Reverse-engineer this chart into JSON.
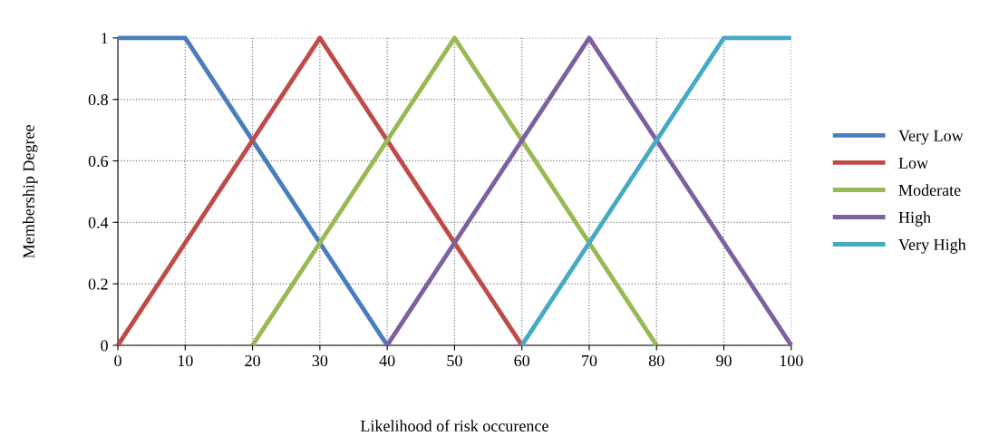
{
  "chart_data": {
    "type": "line",
    "xlabel": "Likelihood of risk occurence",
    "ylabel": "Membership Degree",
    "xlim": [
      0,
      100
    ],
    "xticks": [
      0,
      10,
      20,
      30,
      40,
      50,
      60,
      70,
      80,
      90,
      100
    ],
    "ylim": [
      0,
      1
    ],
    "yticks": [
      0,
      0.2,
      0.4,
      0.6,
      0.8,
      1
    ],
    "grid": true,
    "legend": "right",
    "marker": "none",
    "line_style": "solid",
    "series": [
      {
        "name": "Very Low",
        "color": "#4a7ebb",
        "x": [
          0,
          10,
          40
        ],
        "values": [
          1,
          1,
          0
        ]
      },
      {
        "name": "Low",
        "color": "#be4b48",
        "x": [
          0,
          30,
          60
        ],
        "values": [
          0,
          1,
          0
        ]
      },
      {
        "name": "Moderate",
        "color": "#98b954",
        "x": [
          20,
          50,
          80
        ],
        "values": [
          0,
          1,
          0
        ]
      },
      {
        "name": "High",
        "color": "#7d60a0",
        "x": [
          40,
          70,
          100
        ],
        "values": [
          0,
          1,
          0
        ]
      },
      {
        "name": "Very High",
        "color": "#46aac5",
        "x": [
          60,
          90,
          100
        ],
        "values": [
          0,
          1,
          1
        ]
      }
    ]
  }
}
